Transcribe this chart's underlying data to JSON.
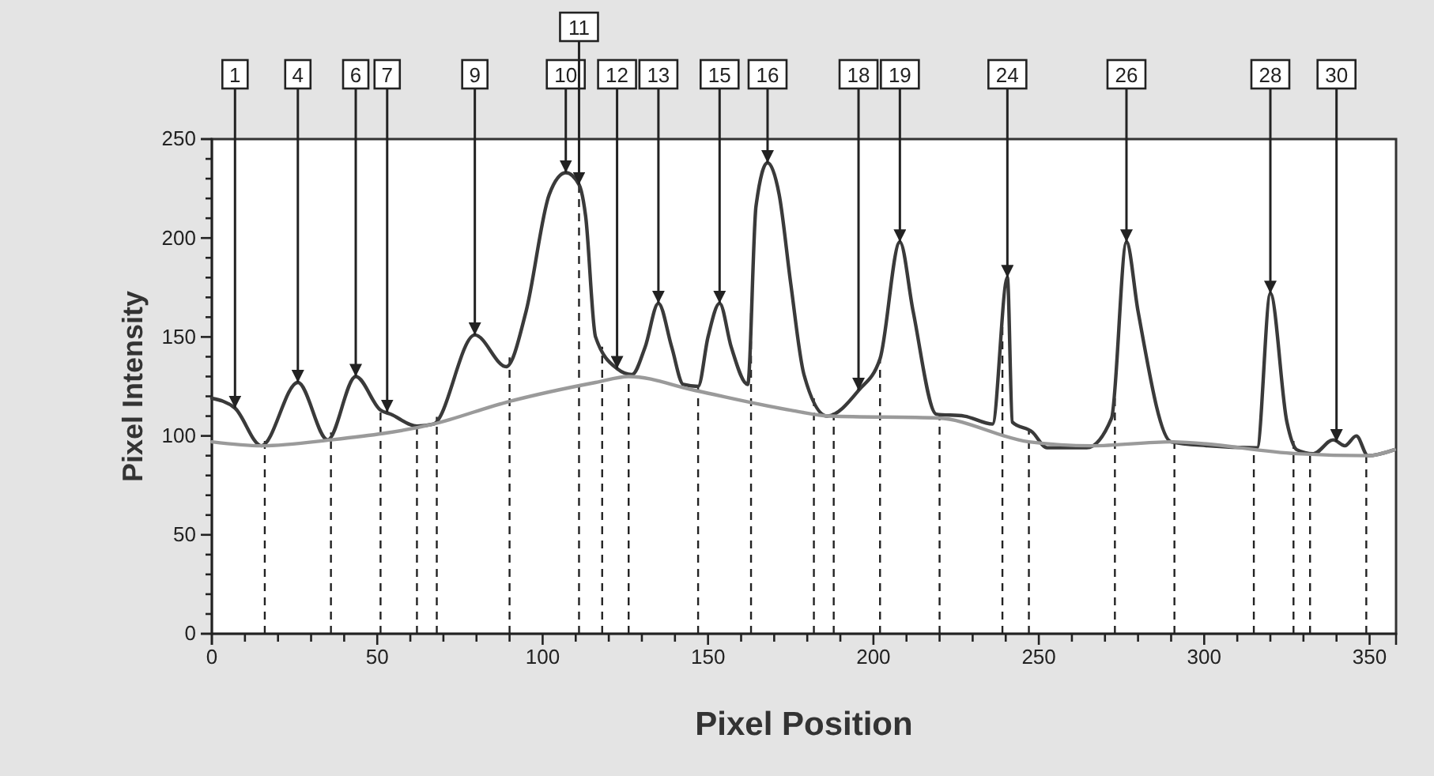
{
  "chart_data": {
    "type": "line",
    "xlabel": "Pixel Position",
    "ylabel": "Pixel Intensity",
    "xlim": [
      0,
      358
    ],
    "ylim": [
      0,
      250
    ],
    "xticks": [
      0,
      {
        "value": 10,
        "label": null
      },
      {
        "value": 20,
        "label": null
      },
      {
        "value": 30,
        "label": null
      },
      {
        "value": 40,
        "label": null
      },
      50,
      {
        "value": 60,
        "label": null
      },
      {
        "value": 70,
        "label": null
      },
      {
        "value": 80,
        "label": null
      },
      {
        "value": 90,
        "label": null
      },
      100,
      {
        "value": 110,
        "label": null
      },
      {
        "value": 120,
        "label": null
      },
      {
        "value": 130,
        "label": null
      },
      {
        "value": 140,
        "label": null
      },
      150,
      {
        "value": 160,
        "label": null
      },
      {
        "value": 170,
        "label": null
      },
      {
        "value": 180,
        "label": null
      },
      {
        "value": 190,
        "label": null
      },
      200,
      {
        "value": 210,
        "label": null
      },
      {
        "value": 220,
        "label": null
      },
      {
        "value": 230,
        "label": null
      },
      {
        "value": 240,
        "label": null
      },
      250,
      {
        "value": 260,
        "label": null
      },
      {
        "value": 270,
        "label": null
      },
      {
        "value": 280,
        "label": null
      },
      {
        "value": 290,
        "label": null
      },
      300,
      {
        "value": 310,
        "label": null
      },
      {
        "value": 320,
        "label": null
      },
      {
        "value": 330,
        "label": null
      },
      {
        "value": 340,
        "label": null
      },
      350
    ],
    "yticks": [
      0,
      {
        "value": 10,
        "label": null
      },
      {
        "value": 20,
        "label": null
      },
      {
        "value": 30,
        "label": null
      },
      {
        "value": 40,
        "label": null
      },
      50,
      {
        "value": 60,
        "label": null
      },
      {
        "value": 70,
        "label": null
      },
      {
        "value": 80,
        "label": null
      },
      {
        "value": 90,
        "label": null
      },
      100,
      {
        "value": 110,
        "label": null
      },
      {
        "value": 120,
        "label": null
      },
      {
        "value": 130,
        "label": null
      },
      {
        "value": 140,
        "label": null
      },
      150,
      {
        "value": 160,
        "label": null
      },
      {
        "value": 170,
        "label": null
      },
      {
        "value": 180,
        "label": null
      },
      {
        "value": 190,
        "label": null
      },
      200,
      {
        "value": 210,
        "label": null
      },
      {
        "value": 220,
        "label": null
      },
      {
        "value": 230,
        "label": null
      },
      {
        "value": 240,
        "label": null
      },
      250
    ],
    "grid": false,
    "marker": "none",
    "series": [
      {
        "color": "#3a3a3a",
        "line_style": "solid",
        "x": [
          0,
          7,
          15,
          26,
          35,
          43.5,
          51,
          54,
          62,
          67,
          79.5,
          89,
          95,
          102,
          107,
          111,
          113,
          116,
          122.5,
          127,
          131,
          135,
          139,
          142.5,
          147,
          150,
          153.5,
          157,
          162,
          164.5,
          168,
          171.5,
          175,
          179,
          186,
          195.5,
          202,
          208,
          212,
          219,
          227.5,
          236,
          240.5,
          242,
          248,
          252.5,
          264.5,
          272,
          276.5,
          280,
          290,
          301,
          316,
          320,
          325,
          328,
          333,
          339,
          342.5,
          346,
          349.5,
          357.5
        ],
        "values": [
          119,
          114,
          95,
          127,
          98,
          130,
          113,
          111,
          105,
          106,
          151,
          135,
          163,
          222,
          233,
          227,
          211,
          150,
          134,
          131,
          145,
          167,
          145,
          126,
          125,
          150,
          167,
          145,
          126,
          216,
          238,
          222,
          177,
          131,
          110,
          123,
          139,
          198,
          163,
          111,
          110,
          106,
          180,
          107,
          102,
          94,
          94,
          109,
          198,
          163,
          97,
          95,
          94,
          172,
          107,
          93,
          91,
          98,
          95,
          100,
          90,
          93
        ]
      },
      {
        "color": "#9a9a9a",
        "line_style": "solid",
        "x": [
          0,
          15,
          36,
          67,
          89,
          116,
          126,
          146,
          175,
          187,
          219.5,
          247,
          266,
          290,
          328,
          349.5,
          357.5
        ],
        "values": [
          97,
          95,
          98,
          106,
          117,
          127,
          130,
          123,
          113,
          110,
          109,
          97,
          95,
          97,
          91,
          90,
          93
        ]
      }
    ],
    "ref_lines": [
      {
        "axis": "x",
        "value": 16,
        "line_style": "dashed"
      },
      {
        "axis": "x",
        "value": 36,
        "line_style": "dashed"
      },
      {
        "axis": "x",
        "value": 51,
        "line_style": "dashed"
      },
      {
        "axis": "x",
        "value": 62,
        "line_style": "dashed"
      },
      {
        "axis": "x",
        "value": 68,
        "line_style": "dashed"
      },
      {
        "axis": "x",
        "value": 90,
        "line_style": "dashed"
      },
      {
        "axis": "x",
        "value": 111,
        "line_style": "dashed"
      },
      {
        "axis": "x",
        "value": 118,
        "line_style": "dashed"
      },
      {
        "axis": "x",
        "value": 126,
        "line_style": "dashed"
      },
      {
        "axis": "x",
        "value": 147,
        "line_style": "dashed"
      },
      {
        "axis": "x",
        "value": 163,
        "line_style": "dashed"
      },
      {
        "axis": "x",
        "value": 182,
        "line_style": "dashed"
      },
      {
        "axis": "x",
        "value": 188,
        "line_style": "dashed"
      },
      {
        "axis": "x",
        "value": 202,
        "line_style": "dashed"
      },
      {
        "axis": "x",
        "value": 220,
        "line_style": "dashed"
      },
      {
        "axis": "x",
        "value": 239,
        "line_style": "dashed"
      },
      {
        "axis": "x",
        "value": 247,
        "line_style": "dashed"
      },
      {
        "axis": "x",
        "value": 273,
        "line_style": "dashed"
      },
      {
        "axis": "x",
        "value": 291,
        "line_style": "dashed"
      },
      {
        "axis": "x",
        "value": 315,
        "line_style": "dashed"
      },
      {
        "axis": "x",
        "value": 327,
        "line_style": "dashed"
      },
      {
        "axis": "x",
        "value": 332,
        "line_style": "dashed"
      },
      {
        "axis": "x",
        "value": 349,
        "line_style": "dashed"
      }
    ],
    "annotations": [
      {
        "text": "1",
        "x": 7,
        "y": 114
      },
      {
        "text": "4",
        "x": 26,
        "y": 127
      },
      {
        "text": "6",
        "x": 43.5,
        "y": 130
      },
      {
        "text": "7",
        "x": 53,
        "y": 112
      },
      {
        "text": "9",
        "x": 79.5,
        "y": 151
      },
      {
        "text": "10",
        "x": 107,
        "y": 233
      },
      {
        "text": "11",
        "x": 111,
        "y": 227
      },
      {
        "text": "12",
        "x": 122.5,
        "y": 134
      },
      {
        "text": "13",
        "x": 135,
        "y": 167
      },
      {
        "text": "15",
        "x": 153.5,
        "y": 167
      },
      {
        "text": "16",
        "x": 168,
        "y": 238
      },
      {
        "text": "18",
        "x": 195.5,
        "y": 123
      },
      {
        "text": "19",
        "x": 208,
        "y": 198
      },
      {
        "text": "24",
        "x": 240.5,
        "y": 180
      },
      {
        "text": "26",
        "x": 276.5,
        "y": 198
      },
      {
        "text": "28",
        "x": 320,
        "y": 172
      },
      {
        "text": "30",
        "x": 340,
        "y": 97
      }
    ]
  }
}
